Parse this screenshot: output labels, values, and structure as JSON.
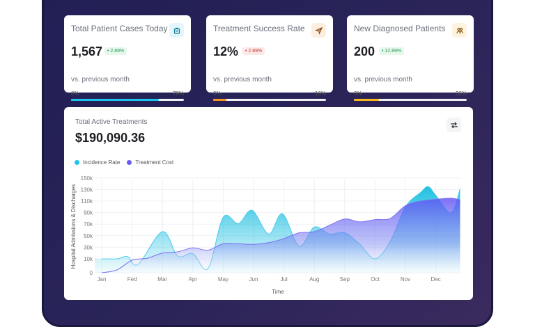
{
  "cards": [
    {
      "title": "Total Patient Cases Today",
      "value": "1,567",
      "change": "• 2.89%",
      "trend": "up",
      "subtitle": "vs. previous month",
      "min": "0%",
      "max": "78%",
      "progress": 0.78,
      "icon": "shopping-bag-icon",
      "accent": "#1cc3ef",
      "icon_bg": "#e3f6fc",
      "icon_color": "#137a96"
    },
    {
      "title": "Treatment Success Rate",
      "value": "12%",
      "change": "• 2.89%",
      "trend": "down",
      "subtitle": "vs. previous month",
      "min": "0%",
      "max": "16%",
      "progress": 0.12,
      "icon": "send-icon",
      "accent": "#f7931e",
      "icon_bg": "#fdeee0",
      "icon_color": "#8a4a17"
    },
    {
      "title": "New Diagnosed Patients",
      "value": "200",
      "change": "• 12.89%",
      "trend": "up",
      "subtitle": "vs. previous month",
      "min": "0%",
      "max": "36%",
      "progress": 0.22,
      "icon": "users-icon",
      "accent": "#f7b91e",
      "icon_bg": "#fdf3df",
      "icon_color": "#8a5a17"
    }
  ],
  "treatments": {
    "title": "Total Active Treatments",
    "value": "$190,090.36",
    "refresh_icon": "repeat-icon"
  },
  "chart_data": {
    "type": "area",
    "xlabel": "Time",
    "ylabel": "Hospital Admissions & Discharges",
    "categories": [
      "Jan",
      "Fed",
      "Mar",
      "Apr",
      "May",
      "Jun",
      "Jul",
      "Aug",
      "Sep",
      "Oct",
      "Nov",
      "Dec"
    ],
    "yticks": [
      "0",
      "10k",
      "30k",
      "50k",
      "70k",
      "90k",
      "110k",
      "130k",
      "150k"
    ],
    "ytick_values": [
      0,
      10000,
      30000,
      50000,
      70000,
      90000,
      110000,
      130000,
      150000
    ],
    "x": [
      0,
      0.5,
      0.85,
      1.2,
      2,
      2.5,
      3,
      3.5,
      4,
      4.5,
      4.95,
      5.5,
      5.95,
      6.5,
      7,
      7.5,
      8,
      8.5,
      9,
      9.5,
      10,
      10.5,
      10.75,
      11,
      11.5,
      11.8
    ],
    "legend": "top-left",
    "series": [
      {
        "name": "Incidence Rate",
        "color": "#1cc3e3",
        "x": [
          0,
          0.5,
          0.85,
          1.2,
          2,
          2.5,
          3,
          3.5,
          4,
          4.5,
          4.95,
          5.5,
          5.95,
          6.5,
          7,
          7.5,
          8,
          8.5,
          9,
          9.5,
          10,
          10.5,
          10.75,
          11,
          11.5,
          11.8
        ],
        "values": [
          10000,
          10000,
          14000,
          6000,
          57000,
          15000,
          19000,
          3000,
          82000,
          71000,
          94000,
          53000,
          88000,
          32000,
          65000,
          53000,
          55000,
          35000,
          10000,
          40000,
          100000,
          125000,
          135000,
          120000,
          90000,
          131000
        ]
      },
      {
        "name": "Treatment Cost",
        "color": "#6a5af0",
        "x": [
          0,
          0.5,
          1,
          1.5,
          2,
          2.5,
          3,
          3.5,
          4,
          4.5,
          5,
          5.5,
          6,
          6.5,
          7,
          7.5,
          8,
          8.5,
          9,
          9.5,
          10,
          10.5,
          11,
          11.5,
          11.8
        ],
        "values": [
          0,
          2000,
          9000,
          11000,
          20000,
          22000,
          29000,
          25000,
          36000,
          36000,
          35000,
          38000,
          45000,
          55000,
          57000,
          68000,
          79000,
          74000,
          78000,
          80000,
          102000,
          110000,
          113000,
          115000,
          112000
        ]
      }
    ]
  }
}
